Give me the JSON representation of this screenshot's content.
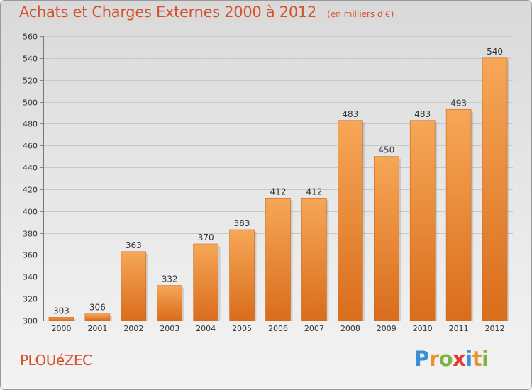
{
  "title": "Achats et Charges Externes 2000 à 2012",
  "subtitle": "(en milliers d'€)",
  "commune": "PLOUéZEC",
  "brand": {
    "letters": [
      "P",
      "r",
      "o",
      "x",
      "i",
      "t",
      "i"
    ],
    "colors": [
      "#3a8fd6",
      "#e8932b",
      "#7cb342",
      "#e53935",
      "#3a8fd6",
      "#e8932b",
      "#7cb342"
    ]
  },
  "colors": {
    "bar_top": "#f6a757",
    "bar_bottom": "#d96d1c",
    "title": "#d5522c"
  },
  "chart_data": {
    "type": "bar",
    "categories": [
      "2000",
      "2001",
      "2002",
      "2003",
      "2004",
      "2005",
      "2006",
      "2007",
      "2008",
      "2009",
      "2010",
      "2011",
      "2012"
    ],
    "values": [
      303,
      306,
      363,
      332,
      370,
      383,
      412,
      412,
      483,
      450,
      483,
      493,
      540
    ],
    "ylim": [
      300,
      560
    ],
    "yticks": [
      300,
      320,
      340,
      360,
      380,
      400,
      420,
      440,
      460,
      480,
      500,
      520,
      540,
      560
    ],
    "grid": true,
    "xlabel": "",
    "ylabel": ""
  }
}
